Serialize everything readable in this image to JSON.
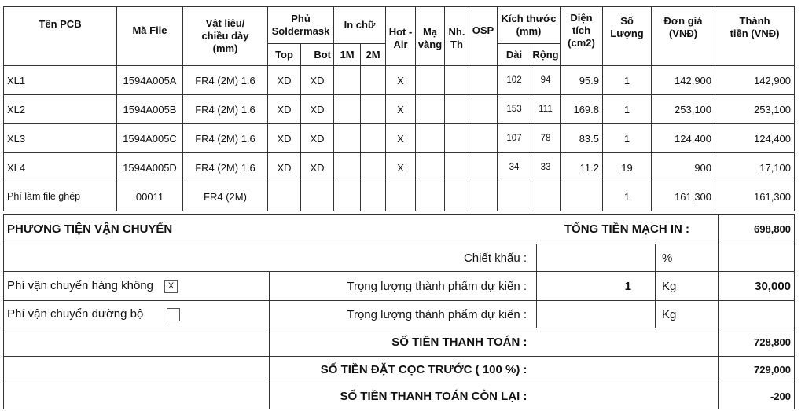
{
  "headers": {
    "ten_pcb": "Tên PCB",
    "ma_file": "Mã File",
    "vat_lieu": "Vật liệu/ chiều dày (mm)",
    "phu_soldermask": "Phủ Soldermask",
    "in_chu": "In chữ",
    "hot_air": "Hot -Air",
    "ma_vang": "Mạ vàng",
    "nh_th": "Nh. Th",
    "osp": "OSP",
    "kich_thuoc": "Kích thước (mm)",
    "dien_tich": "Diện tích (cm2)",
    "so_luong": "Số Lượng",
    "don_gia": "Đơn giá (VNĐ)",
    "thanh_tien": "Thành tiền (VNĐ)",
    "top": "Top",
    "bot": "Bot",
    "m1": "1M",
    "m2": "2M",
    "dai": "Dài",
    "rong": "Rộng"
  },
  "rows": [
    {
      "ten": "XL1",
      "ma": "1594A005A",
      "vat_lieu": "FR4 (2M) 1.6",
      "top": "XD",
      "bot": "XD",
      "m1": "",
      "m2": "",
      "hot_air": "X",
      "ma_vang": "",
      "nh_th": "",
      "osp": "",
      "dai": "102",
      "rong": "94",
      "dien_tich": "95.9",
      "so_luong": "1",
      "don_gia": "142,900",
      "thanh_tien": "142,900"
    },
    {
      "ten": "XL2",
      "ma": "1594A005B",
      "vat_lieu": "FR4 (2M) 1.6",
      "top": "XD",
      "bot": "XD",
      "m1": "",
      "m2": "",
      "hot_air": "X",
      "ma_vang": "",
      "nh_th": "",
      "osp": "",
      "dai": "153",
      "rong": "111",
      "dien_tich": "169.8",
      "so_luong": "1",
      "don_gia": "253,100",
      "thanh_tien": "253,100"
    },
    {
      "ten": "XL3",
      "ma": "1594A005C",
      "vat_lieu": "FR4 (2M) 1.6",
      "top": "XD",
      "bot": "XD",
      "m1": "",
      "m2": "",
      "hot_air": "X",
      "ma_vang": "",
      "nh_th": "",
      "osp": "",
      "dai": "107",
      "rong": "78",
      "dien_tich": "83.5",
      "so_luong": "1",
      "don_gia": "124,400",
      "thanh_tien": "124,400"
    },
    {
      "ten": "XL4",
      "ma": "1594A005D",
      "vat_lieu": "FR4 (2M) 1.6",
      "top": "XD",
      "bot": "XD",
      "m1": "",
      "m2": "",
      "hot_air": "X",
      "ma_vang": "",
      "nh_th": "",
      "osp": "",
      "dai": "34",
      "rong": "33",
      "dien_tich": "11.2",
      "so_luong": "19",
      "don_gia": "900",
      "thanh_tien": "17,100"
    },
    {
      "ten": "Phí làm file ghép",
      "ma": "00011",
      "vat_lieu": "FR4 (2M)",
      "top": "",
      "bot": "",
      "m1": "",
      "m2": "",
      "hot_air": "",
      "ma_vang": "",
      "nh_th": "",
      "osp": "",
      "dai": "",
      "rong": "",
      "dien_tich": "",
      "so_luong": "1",
      "don_gia": "161,300",
      "thanh_tien": "161,300"
    }
  ],
  "summary": {
    "phuong_tien": "PHƯƠNG TIỆN VẬN CHUYỂN",
    "tong_tien_label": "TỔNG TIỀN MẠCH IN :",
    "tong_tien": "698,800",
    "chiet_khau_label": "Chiết khấu :",
    "chiet_khau_value": "",
    "percent": "%",
    "ship_air_label": "Phí vận chuyển hàng không",
    "ship_air_checked": "X",
    "ship_road_label": "Phí vận chuyển đường bộ",
    "ship_road_checked": "",
    "weight_label": "Trọng lượng thành phẩm dự kiến :",
    "air_weight": "1",
    "road_weight": "",
    "unit": "Kg",
    "air_fee": "30,000",
    "road_fee": "",
    "thanh_toan_label": "SỐ TIỀN THANH TOÁN :",
    "thanh_toan": "728,800",
    "dat_coc_label": "SỐ TIỀN ĐẶT CỌC TRƯỚC ( 100 %) :",
    "dat_coc": "729,000",
    "con_lai_label": "SỐ TIỀN THANH TOÁN CÒN LẠI :",
    "con_lai": "-200"
  }
}
